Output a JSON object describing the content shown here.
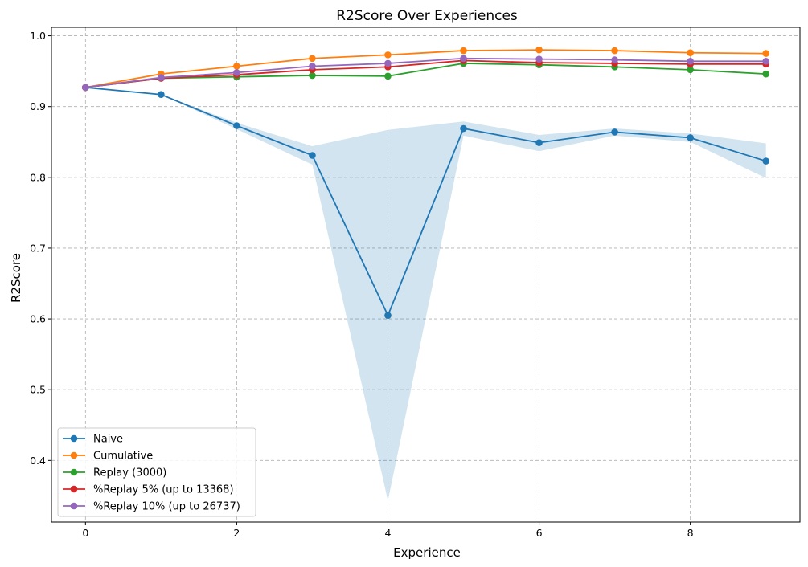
{
  "chart_data": {
    "type": "line",
    "title": "R2Score Over Experiences",
    "xlabel": "Experience",
    "ylabel": "R2Score",
    "xlim": [
      -0.45,
      9.45
    ],
    "ylim": [
      0.313,
      1.012
    ],
    "xticks": [
      0,
      2,
      4,
      6,
      8
    ],
    "yticks": [
      0.4,
      0.5,
      0.6,
      0.7,
      0.8,
      0.9,
      1.0
    ],
    "ytick_labels": [
      "0.4",
      "0.5",
      "0.6",
      "0.7",
      "0.8",
      "0.9",
      "1.0"
    ],
    "grid": true,
    "legend_position": "lower-left",
    "x": [
      0,
      1,
      2,
      3,
      4,
      5,
      6,
      7,
      8,
      9
    ],
    "series": [
      {
        "name": "Naive",
        "color": "#1f77b4",
        "values": [
          0.927,
          0.917,
          0.873,
          0.831,
          0.605,
          0.869,
          0.849,
          0.864,
          0.856,
          0.823
        ],
        "band": {
          "upper": [
            0.927,
            0.917,
            0.877,
            0.844,
            0.867,
            0.879,
            0.86,
            0.869,
            0.862,
            0.848
          ],
          "lower": [
            0.927,
            0.917,
            0.868,
            0.818,
            0.343,
            0.859,
            0.837,
            0.859,
            0.85,
            0.799
          ]
        }
      },
      {
        "name": "Cumulative",
        "color": "#ff7f0e",
        "values": [
          0.927,
          0.946,
          0.957,
          0.968,
          0.973,
          0.979,
          0.98,
          0.979,
          0.976,
          0.975
        ]
      },
      {
        "name": "Replay (3000)",
        "color": "#2ca02c",
        "values": [
          0.927,
          0.94,
          0.942,
          0.944,
          0.943,
          0.961,
          0.959,
          0.956,
          0.952,
          0.946
        ]
      },
      {
        "name": "%Replay 5% (up to 13368)",
        "color": "#d62728",
        "values": [
          0.927,
          0.94,
          0.945,
          0.952,
          0.956,
          0.965,
          0.962,
          0.961,
          0.96,
          0.96
        ]
      },
      {
        "name": "%Replay 10% (up to 26737)",
        "color": "#9467bd",
        "values": [
          0.927,
          0.941,
          0.948,
          0.957,
          0.961,
          0.968,
          0.967,
          0.966,
          0.964,
          0.964
        ]
      }
    ]
  }
}
